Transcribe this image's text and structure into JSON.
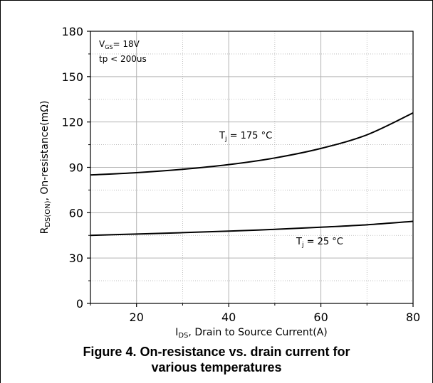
{
  "caption": {
    "line1": "Figure 4. On-resistance vs. drain current for",
    "line2": "various temperatures"
  },
  "chart_data": {
    "type": "line",
    "xlabel": {
      "main": "I",
      "sub": "DS",
      "rest": ", Drain to Source Current(A)"
    },
    "ylabel": {
      "main": "R",
      "sub": "DS(ON)",
      "rest": ", On-resistance(mΩ)"
    },
    "xlim": [
      10,
      80
    ],
    "ylim": [
      0,
      180
    ],
    "x_ticks": [
      20,
      40,
      60,
      80
    ],
    "y_ticks": [
      0,
      30,
      60,
      90,
      120,
      150,
      180
    ],
    "grid": true,
    "conditions": [
      {
        "main": "V",
        "sub": "GS",
        "rest": "= 18V"
      },
      {
        "main": "tp < 200us",
        "sub": "",
        "rest": ""
      }
    ],
    "series": [
      {
        "label": {
          "main": "T",
          "sub": "j",
          "rest": " = 175 °C"
        },
        "x": [
          10,
          20,
          30,
          40,
          50,
          60,
          70,
          80
        ],
        "y": [
          85,
          86.5,
          88.7,
          91.8,
          96.2,
          102.5,
          111.5,
          126
        ]
      },
      {
        "label": {
          "main": "T",
          "sub": "j",
          "rest": " = 25 °C"
        },
        "x": [
          10,
          20,
          30,
          40,
          50,
          60,
          70,
          80
        ],
        "y": [
          45,
          45.9,
          46.8,
          47.8,
          49,
          50.4,
          52,
          54.3
        ]
      }
    ],
    "colors": {
      "line": "#000000",
      "grid": "#b3b3b3",
      "frame": "#000000"
    }
  }
}
